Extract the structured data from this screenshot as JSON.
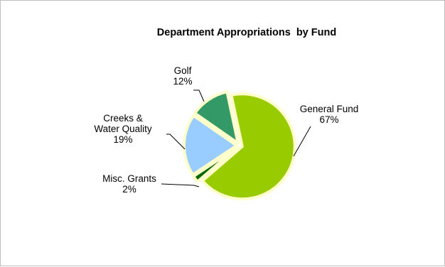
{
  "chart_data": {
    "type": "pie",
    "title": "Department Appropriations  by Fund",
    "categories": [
      "General Fund",
      "Misc. Grants",
      "Creeks & Water Quality",
      "Golf"
    ],
    "values": [
      67,
      2,
      19,
      12
    ],
    "value_labels": [
      "67%",
      "2%",
      "19%",
      "12%"
    ],
    "label_lines": [
      [
        "General Fund",
        "67%"
      ],
      [
        "Misc. Grants",
        "2%"
      ],
      [
        "Creeks &",
        "Water Quality",
        "19%"
      ],
      [
        "Golf",
        "12%"
      ]
    ],
    "colors": [
      "#99cc00",
      "#006600",
      "#99ccff",
      "#339966"
    ],
    "slice_border_color": "#ffffcc",
    "exploded": true,
    "legend": "none"
  }
}
